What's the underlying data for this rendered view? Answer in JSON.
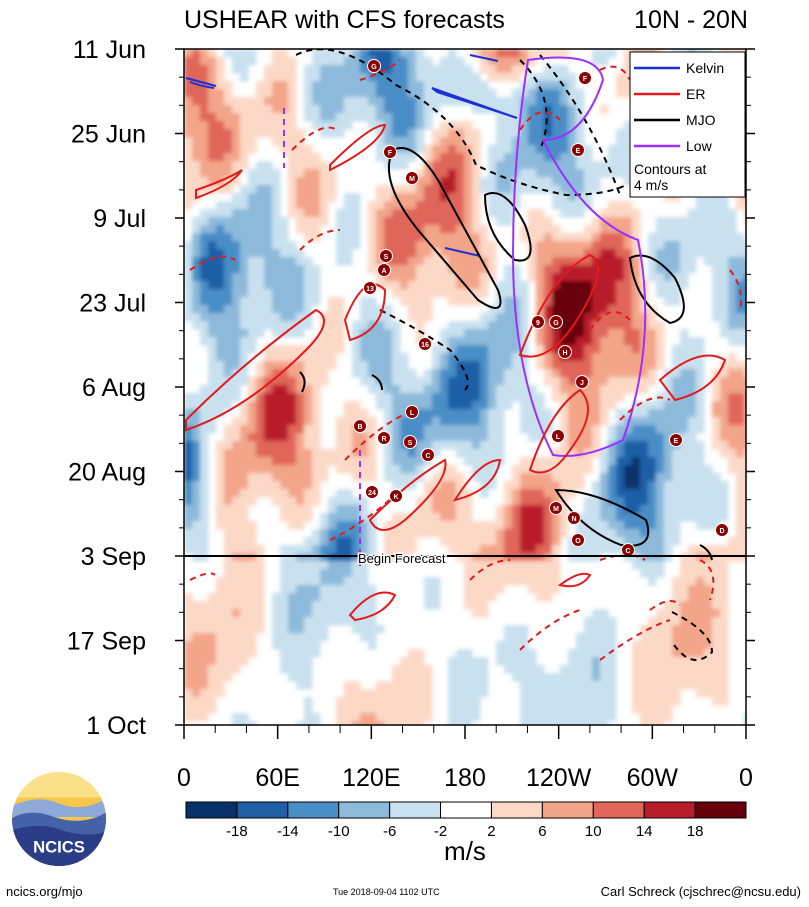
{
  "chart_data": {
    "type": "heatmap",
    "title": "USHEAR with CFS forecasts",
    "region": "10N - 20N",
    "x_ticks": [
      "0",
      "60E",
      "120E",
      "180",
      "120W",
      "60W",
      "0"
    ],
    "x_range_deg": [
      0,
      360
    ],
    "y_ticks": [
      "11 Jun",
      "25 Jun",
      "9 Jul",
      "23 Jul",
      "6 Aug",
      "20 Aug",
      "3 Sep",
      "17 Sep",
      "1 Oct"
    ],
    "forecast_label": "Begin Forecast",
    "forecast_start": "3 Sep",
    "colorbar_ticks": [
      "-18",
      "-14",
      "-10",
      "-6",
      "-2",
      "2",
      "6",
      "10",
      "14",
      "18"
    ],
    "colorbar_unit": "m/s",
    "colorbar_colors": [
      "#08306b",
      "#1f5fa6",
      "#4a8ec7",
      "#8dbadb",
      "#c9e1ef",
      "#ffffff",
      "#fcd9c7",
      "#f3a58a",
      "#e0665a",
      "#b81d2c",
      "#67000d"
    ],
    "legend": [
      {
        "label": "Kelvin",
        "color": "#1f2fd6"
      },
      {
        "label": "ER",
        "color": "#e31a1c"
      },
      {
        "label": "MJO",
        "color": "#000000"
      },
      {
        "label": "Low",
        "color": "#9b30ff"
      }
    ],
    "legend_note": "Contours at 4 m/s",
    "storm_labels": [
      "G",
      "F",
      "M",
      "S",
      "A",
      "13",
      "16",
      "B",
      "R",
      "L",
      "S",
      "C",
      "24",
      "K",
      "F",
      "9",
      "G",
      "H",
      "J",
      "L",
      "E",
      "E",
      "M",
      "N",
      "O",
      "D",
      "C"
    ]
  },
  "logo": {
    "text": "NCICS"
  },
  "footer": {
    "left": "ncics.org/mjo",
    "middle": "Tue 2018-09-04 1102 UTC",
    "right": "Carl Schreck (cjschrec@ncsu.edu)"
  }
}
